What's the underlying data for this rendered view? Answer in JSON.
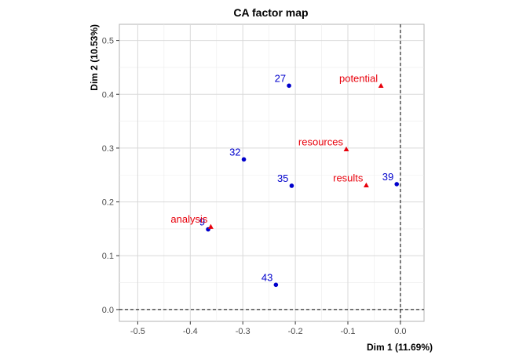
{
  "chart_data": {
    "type": "scatter",
    "title": "CA factor map",
    "xlabel": "Dim 1 (11.69%)",
    "ylabel": "Dim 2 (10.53%)",
    "xlim": [
      -0.535,
      0.045
    ],
    "ylim": [
      -0.022,
      0.53
    ],
    "xticks": [
      -0.5,
      -0.4,
      -0.3,
      -0.2,
      -0.1,
      0.0
    ],
    "xtick_labels": [
      "-0.5",
      "-0.4",
      "-0.3",
      "-0.2",
      "-0.1",
      "0.0"
    ],
    "yticks": [
      0.0,
      0.1,
      0.2,
      0.3,
      0.4,
      0.5
    ],
    "ytick_labels": [
      "0.0",
      "0.1",
      "0.2",
      "0.3",
      "0.4",
      "0.5"
    ],
    "grid": true,
    "reference_lines": {
      "x": 0,
      "y": 0
    },
    "series": [
      {
        "marker": "circle",
        "color": "#0000cc",
        "points": [
          {
            "label": "27",
            "x": -0.212,
            "y": 0.416
          },
          {
            "label": "32",
            "x": -0.298,
            "y": 0.279
          },
          {
            "label": "35",
            "x": -0.207,
            "y": 0.23
          },
          {
            "label": "39",
            "x": -0.007,
            "y": 0.233
          },
          {
            "label": "9",
            "x": -0.366,
            "y": 0.149
          },
          {
            "label": "43",
            "x": -0.237,
            "y": 0.046
          }
        ]
      },
      {
        "marker": "triangle",
        "color": "#e8000b",
        "points": [
          {
            "label": "potential",
            "x": -0.037,
            "y": 0.416
          },
          {
            "label": "resources",
            "x": -0.103,
            "y": 0.298
          },
          {
            "label": "results",
            "x": -0.065,
            "y": 0.231
          },
          {
            "label": "analysis",
            "x": -0.361,
            "y": 0.154
          }
        ]
      }
    ]
  }
}
